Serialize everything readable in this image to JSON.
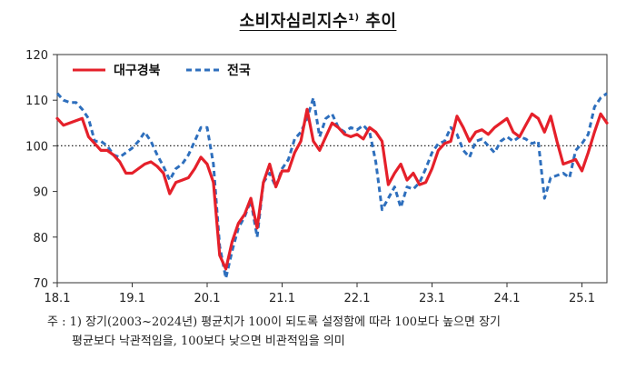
{
  "title": {
    "main": "소비자심리지수",
    "sup": "1)",
    "suffix": " 추이"
  },
  "note": {
    "line1": "주 : 1) 장기(2003~2024년) 평균치가 100이 되도록 설정함에 따라 100보다 높으면 장기",
    "line2": "평균보다 낙관적임을, 100보다 낮으면 비관적임을 의미"
  },
  "chart_data": {
    "type": "line",
    "title": "소비자심리지수 추이",
    "xlabel": "",
    "ylabel": "",
    "ylim": [
      70,
      120
    ],
    "yticks": [
      70,
      80,
      90,
      100,
      110,
      120
    ],
    "xticks": [
      "18.1",
      "19.1",
      "20.1",
      "21.1",
      "22.1",
      "23.1",
      "24.1",
      "25.1"
    ],
    "x_start": "2018.01",
    "reference_line": 100,
    "legend": "top-left",
    "series": [
      {
        "name": "대구경북",
        "color": "#e5202a",
        "style": "solid",
        "values": [
          106,
          104.5,
          105,
          105.5,
          106,
          102,
          100.5,
          99,
          99,
          98,
          96.5,
          94,
          94,
          95,
          96,
          96.5,
          95.5,
          94,
          89.5,
          92,
          92.5,
          93,
          95,
          97.5,
          96,
          92,
          76,
          73,
          79,
          83,
          85,
          88.5,
          82,
          92,
          96,
          91,
          94.5,
          94.5,
          98.5,
          101,
          108,
          101,
          99,
          102,
          105,
          104,
          102.5,
          102,
          102.5,
          101.5,
          104,
          103,
          101,
          91.5,
          94,
          96,
          92.5,
          94,
          91.5,
          92,
          95,
          99,
          100.5,
          101,
          106.5,
          104,
          101,
          103,
          103.5,
          102.5,
          104,
          105,
          106,
          103,
          102,
          104.5,
          107,
          106,
          103,
          106.5,
          101,
          96,
          96.5,
          97,
          94.5,
          98.5,
          103,
          107,
          105
        ]
      },
      {
        "name": "전국",
        "color": "#2e6fbd",
        "style": "dashed",
        "values": [
          111.5,
          110,
          109.5,
          109.5,
          108,
          106,
          101,
          101,
          100,
          98,
          97.5,
          98.5,
          99.5,
          101,
          103,
          101,
          98,
          95.5,
          92.5,
          95,
          96,
          98,
          101,
          104,
          104,
          96,
          78,
          71,
          77,
          82,
          84.5,
          88,
          80,
          92,
          94,
          91,
          95,
          97,
          101.5,
          103,
          106,
          110.5,
          102,
          106,
          107,
          104,
          103,
          104,
          103.5,
          104.5,
          103,
          96.5,
          86,
          88.5,
          91,
          86.5,
          91,
          90.5,
          92,
          95,
          98.5,
          100.5,
          101,
          104,
          102.5,
          99,
          97.5,
          101,
          101.5,
          100,
          98.5,
          101,
          102,
          101,
          102,
          101.5,
          100.5,
          101,
          88.5,
          93,
          93.5,
          94,
          93,
          99,
          100.5,
          102.5,
          108.5,
          110.5,
          111.5
        ]
      }
    ]
  }
}
